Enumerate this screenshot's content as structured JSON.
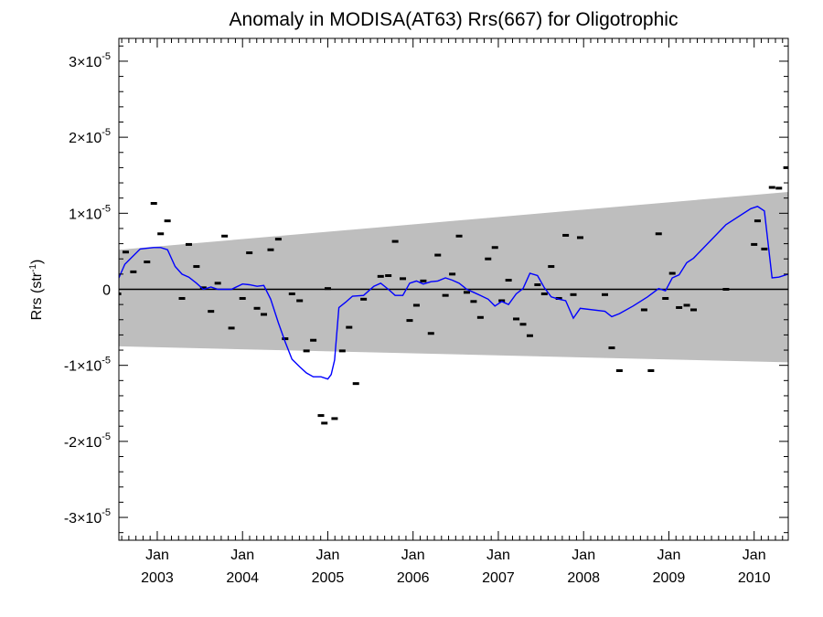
{
  "chart_data": {
    "type": "line",
    "title": "Anomaly in MODISA(AT63) Rrs(667) for Oligotrophic",
    "ylabel_main": "Rrs (str",
    "ylabel_sup": "-1",
    "ylabel_close": ")",
    "xlabel": "",
    "xlim": [
      2002.55,
      2010.4
    ],
    "ylim": [
      -3.3e-05,
      3.3e-05
    ],
    "grid": false,
    "x_ticks": [
      {
        "x": 2003.0,
        "month": "Jan",
        "year": "2003"
      },
      {
        "x": 2004.0,
        "month": "Jan",
        "year": "2004"
      },
      {
        "x": 2005.0,
        "month": "Jan",
        "year": "2005"
      },
      {
        "x": 2006.0,
        "month": "Jan",
        "year": "2006"
      },
      {
        "x": 2007.0,
        "month": "Jan",
        "year": "2007"
      },
      {
        "x": 2008.0,
        "month": "Jan",
        "year": "2008"
      },
      {
        "x": 2009.0,
        "month": "Jan",
        "year": "2009"
      },
      {
        "x": 2010.0,
        "month": "Jan",
        "year": "2010"
      }
    ],
    "y_ticks": [
      {
        "value": 3e-05,
        "mant": "3",
        "sign": "",
        "exp": "-5"
      },
      {
        "value": 2e-05,
        "mant": "2",
        "sign": "",
        "exp": "-5"
      },
      {
        "value": 1e-05,
        "mant": "1",
        "sign": "",
        "exp": "-5"
      },
      {
        "value": 0,
        "mant": "0",
        "sign": "",
        "exp": ""
      },
      {
        "value": -1e-05,
        "mant": "1",
        "sign": "-",
        "exp": "-5"
      },
      {
        "value": -2e-05,
        "mant": "2",
        "sign": "-",
        "exp": "-5"
      },
      {
        "value": -3e-05,
        "mant": "3",
        "sign": "-",
        "exp": "-5"
      }
    ],
    "colors": {
      "line": "#0000ff",
      "band": "#bebebe",
      "points": "#000000",
      "zero": "#000000"
    },
    "band": {
      "x": [
        2002.55,
        2010.4
      ],
      "upper": [
        5.2e-06,
        1.28e-05
      ],
      "lower": [
        -7.5e-06,
        -9.6e-06
      ]
    },
    "series": [
      {
        "type": "points",
        "x": [
          2002.54,
          2002.63,
          2002.72,
          2002.88,
          2002.96,
          2003.04,
          2003.12,
          2003.29,
          2003.37,
          2003.46,
          2003.54,
          2003.63,
          2003.71,
          2003.79,
          2003.87,
          2004.0,
          2004.08,
          2004.17,
          2004.25,
          2004.33,
          2004.42,
          2004.5,
          2004.58,
          2004.67,
          2004.75,
          2004.83,
          2004.92,
          2004.96,
          2005.0,
          2005.08,
          2005.17,
          2005.25,
          2005.33,
          2005.42,
          2005.62,
          2005.71,
          2005.79,
          2005.88,
          2005.96,
          2006.04,
          2006.12,
          2006.21,
          2006.29,
          2006.38,
          2006.46,
          2006.54,
          2006.63,
          2006.71,
          2006.79,
          2006.88,
          2006.96,
          2007.04,
          2007.12,
          2007.21,
          2007.29,
          2007.37,
          2007.46,
          2007.54,
          2007.62,
          2007.71,
          2007.79,
          2007.88,
          2007.96,
          2008.25,
          2008.33,
          2008.42,
          2008.71,
          2008.79,
          2008.88,
          2008.96,
          2009.04,
          2009.12,
          2009.21,
          2009.29,
          2009.67,
          2010.0,
          2010.04,
          2010.12,
          2010.21,
          2010.29,
          2010.38
        ],
        "y": [
          -6e-07,
          4.9e-06,
          2.3e-06,
          3.6e-06,
          1.13e-05,
          7.3e-06,
          9e-06,
          -1.2e-06,
          5.9e-06,
          3e-06,
          2e-07,
          -2.9e-06,
          8e-07,
          7e-06,
          -5.1e-06,
          -1.2e-06,
          4.8e-06,
          -2.5e-06,
          -3.3e-06,
          5.2e-06,
          6.6e-06,
          -6.5e-06,
          -6e-07,
          -1.5e-06,
          -8.1e-06,
          -6.7e-06,
          -1.66e-05,
          -1.76e-05,
          1e-07,
          -1.7e-05,
          -8.1e-06,
          -5e-06,
          -1.24e-05,
          -1.3e-06,
          1.7e-06,
          1.8e-06,
          6.3e-06,
          1.4e-06,
          -4.1e-06,
          -2.1e-06,
          1.1e-06,
          -5.8e-06,
          4.5e-06,
          -8e-07,
          2e-06,
          7e-06,
          -4e-07,
          -1.6e-06,
          -3.7e-06,
          4e-06,
          5.5e-06,
          -1.5e-06,
          1.2e-06,
          -3.9e-06,
          -4.6e-06,
          -6.1e-06,
          6e-07,
          -6e-07,
          3e-06,
          -1.2e-06,
          7.1e-06,
          -7e-07,
          6.8e-06,
          -7e-07,
          -7.7e-06,
          -1.07e-05,
          -2.7e-06,
          -1.07e-05,
          7.3e-06,
          -1.2e-06,
          2.1e-06,
          -2.4e-06,
          -2.1e-06,
          -2.7e-06,
          0,
          5.9e-06,
          9e-06,
          5.3e-06,
          1.34e-05,
          1.33e-05,
          1.6e-05
        ]
      },
      {
        "type": "line",
        "x": [
          2002.55,
          2002.62,
          2002.7,
          2002.8,
          2002.88,
          2002.96,
          2003.04,
          2003.12,
          2003.21,
          2003.29,
          2003.37,
          2003.46,
          2003.54,
          2003.63,
          2003.71,
          2003.79,
          2003.87,
          2004.0,
          2004.08,
          2004.17,
          2004.25,
          2004.33,
          2004.42,
          2004.5,
          2004.58,
          2004.67,
          2004.75,
          2004.83,
          2004.92,
          2005.0,
          2005.04,
          2005.08,
          2005.13,
          2005.21,
          2005.29,
          2005.42,
          2005.54,
          2005.62,
          2005.71,
          2005.79,
          2005.88,
          2005.96,
          2006.04,
          2006.12,
          2006.21,
          2006.29,
          2006.38,
          2006.46,
          2006.54,
          2006.63,
          2006.71,
          2006.79,
          2006.88,
          2006.96,
          2007.04,
          2007.12,
          2007.21,
          2007.29,
          2007.37,
          2007.46,
          2007.54,
          2007.62,
          2007.71,
          2007.79,
          2007.88,
          2007.96,
          2008.25,
          2008.33,
          2008.42,
          2008.58,
          2008.75,
          2008.88,
          2008.96,
          2009.04,
          2009.12,
          2009.21,
          2009.29,
          2009.67,
          2009.96,
          2010.04,
          2010.12,
          2010.21,
          2010.29,
          2010.4
        ],
        "y": [
          1.5e-06,
          3.3e-06,
          4.2e-06,
          5.3e-06,
          5.4e-06,
          5.5e-06,
          5.5e-06,
          5.2e-06,
          3e-06,
          2e-06,
          1.6e-06,
          8e-07,
          0,
          3e-07,
          0,
          0,
          0,
          7e-07,
          6e-07,
          4e-07,
          5e-07,
          -1.3e-06,
          -4.4e-06,
          -6.9e-06,
          -9.2e-06,
          -1.02e-05,
          -1.1e-05,
          -1.15e-05,
          -1.15e-05,
          -1.18e-05,
          -1.12e-05,
          -9.3e-06,
          -2.4e-06,
          -1.7e-06,
          -9e-07,
          -8e-07,
          4e-07,
          8e-07,
          0,
          -8e-07,
          -8e-07,
          8e-07,
          1.1e-06,
          7e-07,
          1e-06,
          1.1e-06,
          1.5e-06,
          1.2e-06,
          8e-07,
          0,
          -4e-07,
          -8e-07,
          -1.3e-06,
          -2.2e-06,
          -1.6e-06,
          -2e-06,
          -6e-07,
          1e-07,
          2.1e-06,
          1.8e-06,
          2e-07,
          -1e-06,
          -1.3e-06,
          -1.5e-06,
          -3.8e-06,
          -2.5e-06,
          -2.9e-06,
          -3.6e-06,
          -3.2e-06,
          -2.2e-06,
          -1e-06,
          1e-07,
          -2e-07,
          1.5e-06,
          1.9e-06,
          3.5e-06,
          4.1e-06,
          8.5e-06,
          1.06e-05,
          1.09e-05,
          1.03e-05,
          1.5e-06,
          1.6e-06,
          2e-06
        ]
      }
    ]
  }
}
